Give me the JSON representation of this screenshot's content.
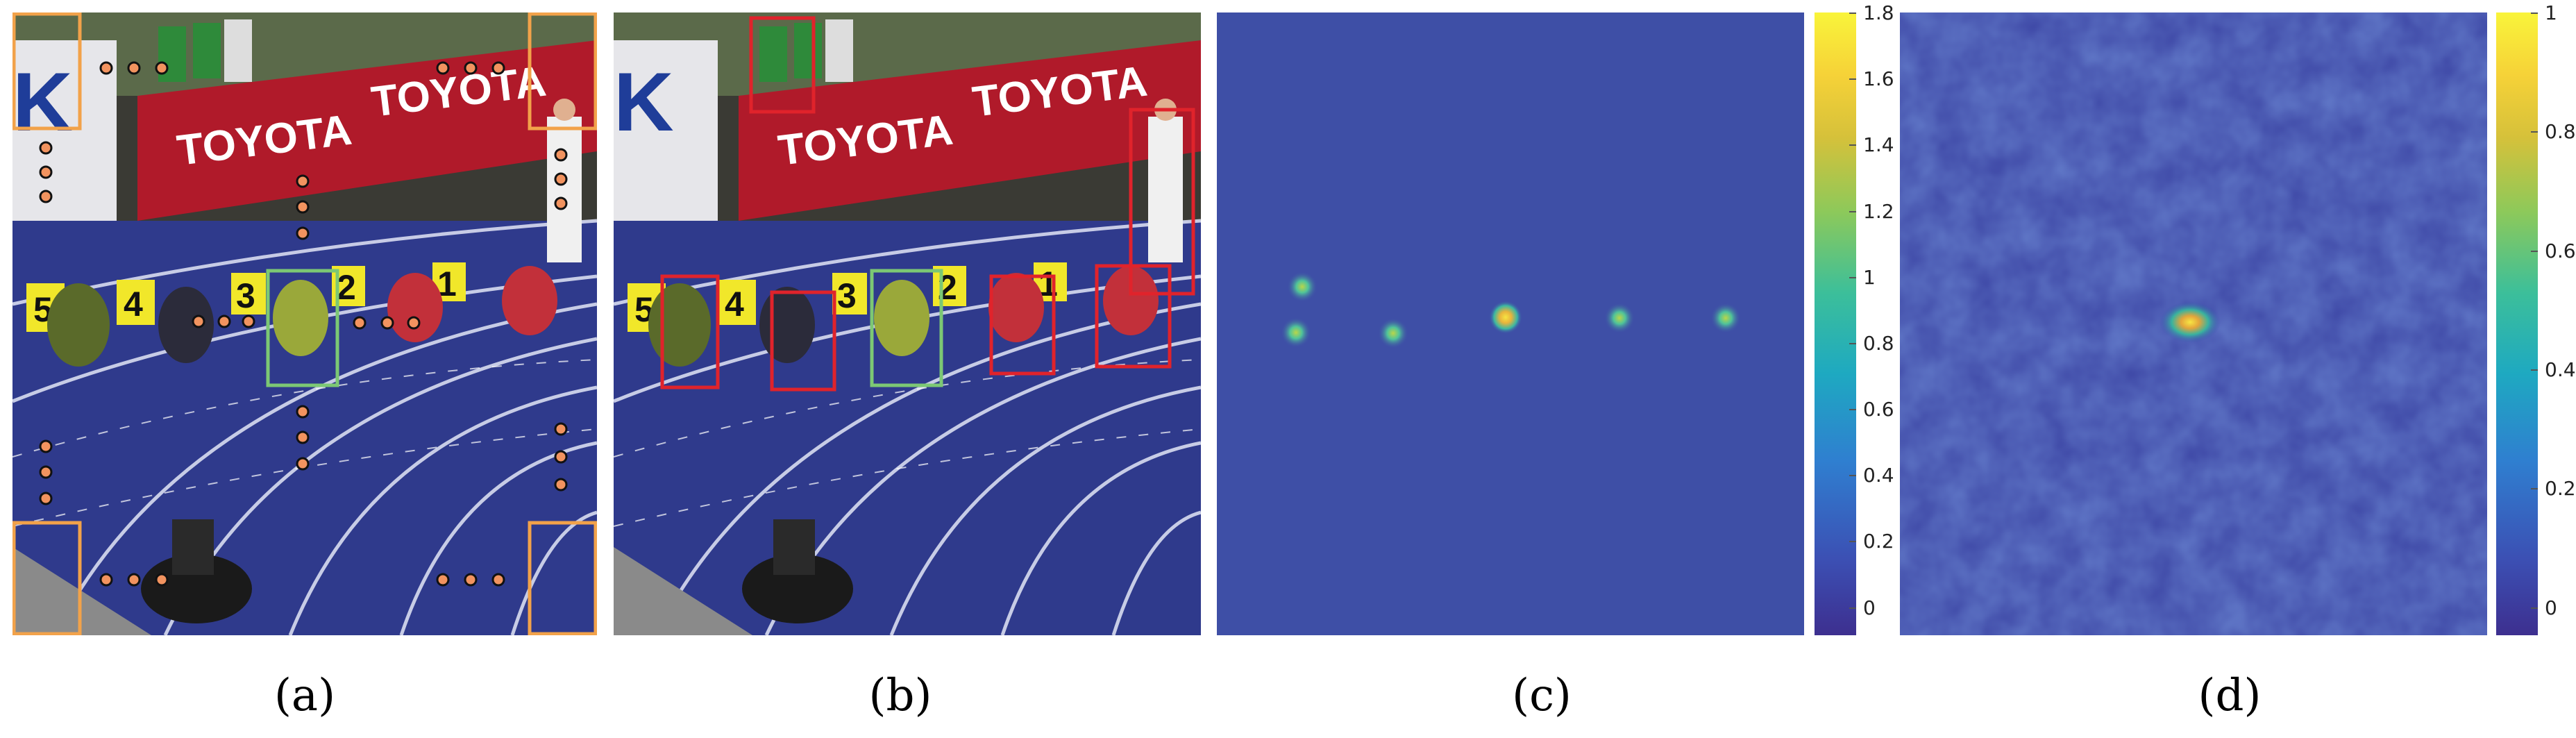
{
  "captions": {
    "a": "(a)",
    "b": "(b)",
    "c": "(c)",
    "d": "(d)"
  },
  "scene_text": {
    "banner_word": "TOYOTA",
    "lane_numbers": [
      "5",
      "4",
      "3",
      "2",
      "1"
    ],
    "sign_letter": "K"
  },
  "colors": {
    "track": "#2f3a8c",
    "banner": "#b01a2a",
    "orange_marker": "#f2935f",
    "red_box": "#e0232b",
    "green_box": "#7cc874",
    "map_bg": "#3e4fa6"
  },
  "colorbar_c": {
    "ticks": [
      "1.8",
      "1.6",
      "1.4",
      "1.2",
      "1",
      "0.8",
      "0.6",
      "0.4",
      "0.2",
      "0"
    ]
  },
  "colorbar_d": {
    "ticks": [
      "1",
      "0.8",
      "0.6",
      "0.4",
      "0.2",
      "0"
    ]
  }
}
